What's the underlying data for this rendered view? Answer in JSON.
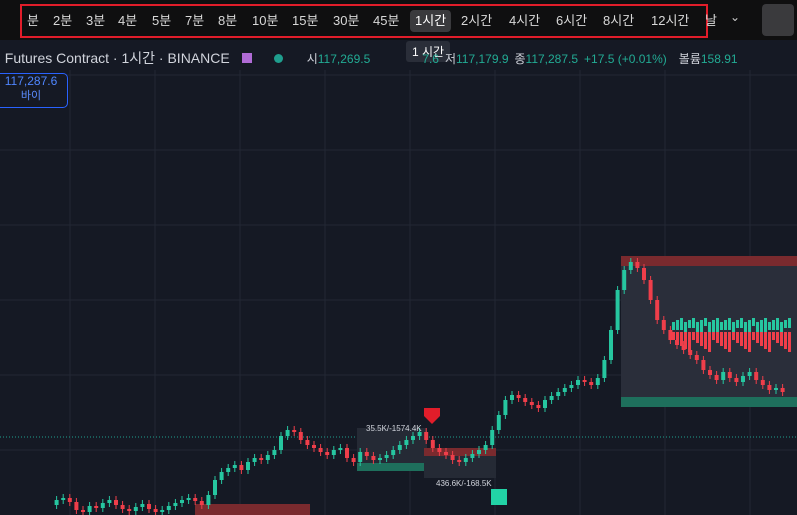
{
  "toolbar": {
    "intervals": [
      "분",
      "2분",
      "3분",
      "4분",
      "5분",
      "7분",
      "8분",
      "10분",
      "15분",
      "30분",
      "45분",
      "1시간",
      "2시간",
      "4시간",
      "6시간",
      "8시간",
      "12시간"
    ],
    "selected": 11,
    "more": "날",
    "tooltip": "1 시간"
  },
  "header": {
    "symbol": ". Futures Contract · 1시간 · BINANCE",
    "ohlc": [
      {
        "label": "시",
        "value": "117,269.5"
      },
      {
        "label": "",
        "value": "7.6"
      },
      {
        "label": "저",
        "value": "117,179.9"
      },
      {
        "label": "종",
        "value": "117,287.5"
      }
    ],
    "change": "+17.5 (+0.01%)",
    "volume_label": "볼륨",
    "volume": "158.91"
  },
  "price_badge": {
    "price": "117,287.6",
    "label": "바이"
  },
  "annotations": [
    "35.5K/-1574.4K",
    "436.6K/-168.5K"
  ]
}
